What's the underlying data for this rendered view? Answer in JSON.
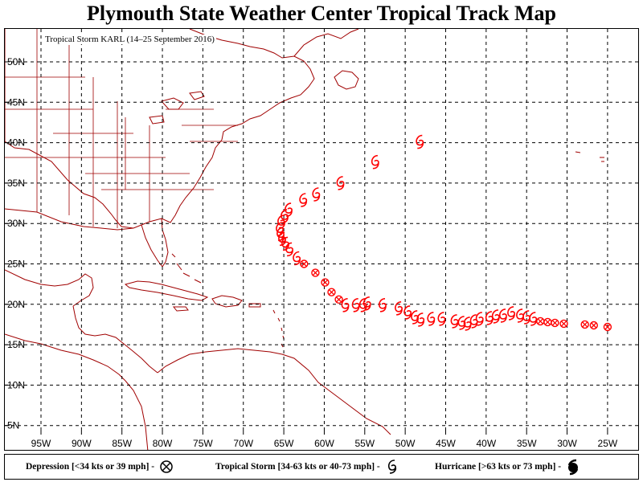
{
  "title": "Plymouth State Weather Center Tropical Track Map",
  "storm_label": "Tropical Storm KARL (14–25 September 2016)",
  "colors": {
    "track": "#ff0000",
    "coast": "#a00000",
    "grid": "#000000"
  },
  "lat_labels": [
    "50N",
    "45N",
    "40N",
    "35N",
    "30N",
    "25N",
    "20N",
    "15N",
    "10N",
    "5N"
  ],
  "lon_labels": [
    "95W",
    "90W",
    "85W",
    "80W",
    "75W",
    "70W",
    "65W",
    "60W",
    "55W",
    "50W",
    "45W",
    "40W",
    "35W",
    "30W",
    "25W"
  ],
  "legend": {
    "depression": "Depression [<34 kts or 39 mph] -",
    "tropical_storm": "Tropical Storm [34-63 kts or 40-73 mph] -",
    "hurricane": "Hurricane [>63 kts or 73 mph] -",
    "depression_icon": "circle-x-icon",
    "tropical_storm_icon": "tropical-storm-symbol-icon",
    "hurricane_icon": "hurricane-symbol-icon"
  },
  "track": [
    {
      "lon": -25.0,
      "lat": 17.2,
      "type": "depression"
    },
    {
      "lon": -26.7,
      "lat": 17.4,
      "type": "depression"
    },
    {
      "lon": -27.8,
      "lat": 17.5,
      "type": "depression"
    },
    {
      "lon": -30.4,
      "lat": 17.6,
      "type": "depression"
    },
    {
      "lon": -31.5,
      "lat": 17.7,
      "type": "depression"
    },
    {
      "lon": -32.4,
      "lat": 17.8,
      "type": "depression"
    },
    {
      "lon": -33.3,
      "lat": 17.9,
      "type": "depression"
    },
    {
      "lon": -34.2,
      "lat": 18.2,
      "type": "tropical_storm"
    },
    {
      "lon": -35.0,
      "lat": 18.4,
      "type": "tropical_storm"
    },
    {
      "lon": -35.8,
      "lat": 18.6,
      "type": "tropical_storm"
    },
    {
      "lon": -36.9,
      "lat": 18.9,
      "type": "tropical_storm"
    },
    {
      "lon": -37.9,
      "lat": 18.6,
      "type": "tropical_storm"
    },
    {
      "lon": -38.8,
      "lat": 18.5,
      "type": "tropical_storm"
    },
    {
      "lon": -39.6,
      "lat": 18.3,
      "type": "tropical_storm"
    },
    {
      "lon": -40.8,
      "lat": 18.2,
      "type": "tropical_storm"
    },
    {
      "lon": -41.5,
      "lat": 17.9,
      "type": "tropical_storm"
    },
    {
      "lon": -42.3,
      "lat": 17.6,
      "type": "tropical_storm"
    },
    {
      "lon": -43.0,
      "lat": 17.7,
      "type": "tropical_storm"
    },
    {
      "lon": -43.9,
      "lat": 17.9,
      "type": "tropical_storm"
    },
    {
      "lon": -45.5,
      "lat": 18.2,
      "type": "tropical_storm"
    },
    {
      "lon": -46.8,
      "lat": 18.2,
      "type": "tropical_storm"
    },
    {
      "lon": -48.1,
      "lat": 18.1,
      "type": "tropical_storm"
    },
    {
      "lon": -48.8,
      "lat": 18.4,
      "type": "tropical_storm"
    },
    {
      "lon": -49.7,
      "lat": 19.0,
      "type": "tropical_storm"
    },
    {
      "lon": -50.8,
      "lat": 19.5,
      "type": "tropical_storm"
    },
    {
      "lon": -52.8,
      "lat": 19.9,
      "type": "tropical_storm"
    },
    {
      "lon": -54.7,
      "lat": 20.1,
      "type": "tropical_storm"
    },
    {
      "lon": -55.2,
      "lat": 19.9,
      "type": "tropical_storm"
    },
    {
      "lon": -56.1,
      "lat": 19.9,
      "type": "tropical_storm"
    },
    {
      "lon": -57.4,
      "lat": 19.9,
      "type": "tropical_storm"
    },
    {
      "lon": -58.2,
      "lat": 20.6,
      "type": "depression"
    },
    {
      "lon": -59.1,
      "lat": 21.5,
      "type": "depression"
    },
    {
      "lon": -59.9,
      "lat": 22.7,
      "type": "depression"
    },
    {
      "lon": -61.1,
      "lat": 23.9,
      "type": "depression"
    },
    {
      "lon": -62.5,
      "lat": 25.0,
      "type": "depression"
    },
    {
      "lon": -63.4,
      "lat": 25.7,
      "type": "tropical_storm"
    },
    {
      "lon": -64.3,
      "lat": 26.8,
      "type": "tropical_storm"
    },
    {
      "lon": -64.8,
      "lat": 27.5,
      "type": "tropical_storm"
    },
    {
      "lon": -65.2,
      "lat": 28.1,
      "type": "tropical_storm"
    },
    {
      "lon": -65.4,
      "lat": 28.7,
      "type": "tropical_storm"
    },
    {
      "lon": -65.5,
      "lat": 29.3,
      "type": "tropical_storm"
    },
    {
      "lon": -65.3,
      "lat": 30.2,
      "type": "tropical_storm"
    },
    {
      "lon": -64.9,
      "lat": 30.9,
      "type": "tropical_storm"
    },
    {
      "lon": -64.4,
      "lat": 31.7,
      "type": "tropical_storm"
    },
    {
      "lon": -62.6,
      "lat": 32.9,
      "type": "tropical_storm"
    },
    {
      "lon": -61.0,
      "lat": 33.6,
      "type": "tropical_storm"
    },
    {
      "lon": -58.0,
      "lat": 35.0,
      "type": "tropical_storm"
    },
    {
      "lon": -53.7,
      "lat": 37.6,
      "type": "tropical_storm"
    },
    {
      "lon": -48.2,
      "lat": 40.1,
      "type": "tropical_storm"
    }
  ]
}
